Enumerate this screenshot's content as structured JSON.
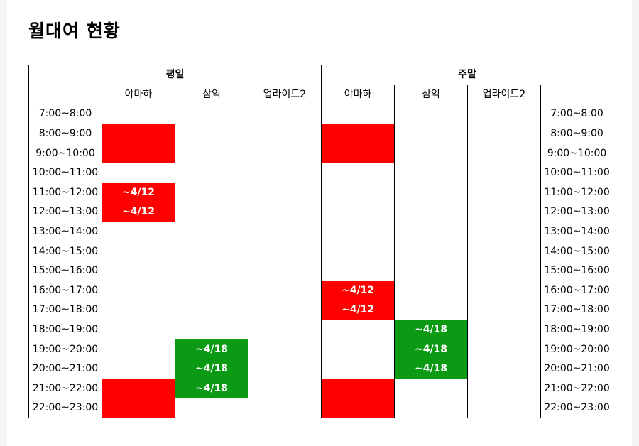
{
  "title": "월대여 현황",
  "colors": {
    "reserved_red": "#ff0000",
    "reserved_green": "#0a9a14"
  },
  "groups": {
    "weekday": "평일",
    "weekend": "주말"
  },
  "rooms": [
    "야마하",
    "삼익",
    "업라이트2"
  ],
  "rows": [
    {
      "time": "7:00~8:00",
      "weekday": [
        null,
        null,
        null
      ],
      "weekend": [
        null,
        null,
        null
      ]
    },
    {
      "time": "8:00~9:00",
      "weekday": [
        {
          "c": "red",
          "t": ""
        },
        null,
        null
      ],
      "weekend": [
        {
          "c": "red",
          "t": ""
        },
        null,
        null
      ]
    },
    {
      "time": "9:00~10:00",
      "weekday": [
        {
          "c": "red",
          "t": ""
        },
        null,
        null
      ],
      "weekend": [
        {
          "c": "red",
          "t": ""
        },
        null,
        null
      ]
    },
    {
      "time": "10:00~11:00",
      "weekday": [
        null,
        null,
        null
      ],
      "weekend": [
        null,
        null,
        null
      ]
    },
    {
      "time": "11:00~12:00",
      "weekday": [
        {
          "c": "red",
          "t": "~4/12"
        },
        null,
        null
      ],
      "weekend": [
        null,
        null,
        null
      ]
    },
    {
      "time": "12:00~13:00",
      "weekday": [
        {
          "c": "red",
          "t": "~4/12"
        },
        null,
        null
      ],
      "weekend": [
        null,
        null,
        null
      ]
    },
    {
      "time": "13:00~14:00",
      "weekday": [
        null,
        null,
        null
      ],
      "weekend": [
        null,
        null,
        null
      ]
    },
    {
      "time": "14:00~15:00",
      "weekday": [
        null,
        null,
        null
      ],
      "weekend": [
        null,
        null,
        null
      ]
    },
    {
      "time": "15:00~16:00",
      "weekday": [
        null,
        null,
        null
      ],
      "weekend": [
        null,
        null,
        null
      ]
    },
    {
      "time": "16:00~17:00",
      "weekday": [
        null,
        null,
        null
      ],
      "weekend": [
        {
          "c": "red",
          "t": "~4/12"
        },
        null,
        null
      ]
    },
    {
      "time": "17:00~18:00",
      "weekday": [
        null,
        null,
        null
      ],
      "weekend": [
        {
          "c": "red",
          "t": "~4/12"
        },
        null,
        null
      ]
    },
    {
      "time": "18:00~19:00",
      "weekday": [
        null,
        null,
        null
      ],
      "weekend": [
        null,
        {
          "c": "green",
          "t": "~4/18"
        },
        null
      ]
    },
    {
      "time": "19:00~20:00",
      "weekday": [
        null,
        {
          "c": "green",
          "t": "~4/18"
        },
        null
      ],
      "weekend": [
        null,
        {
          "c": "green",
          "t": "~4/18"
        },
        null
      ]
    },
    {
      "time": "20:00~21:00",
      "weekday": [
        null,
        {
          "c": "green",
          "t": "~4/18"
        },
        null
      ],
      "weekend": [
        null,
        {
          "c": "green",
          "t": "~4/18"
        },
        null
      ]
    },
    {
      "time": "21:00~22:00",
      "weekday": [
        {
          "c": "red",
          "t": ""
        },
        {
          "c": "green",
          "t": "~4/18"
        },
        null
      ],
      "weekend": [
        {
          "c": "red",
          "t": ""
        },
        null,
        null
      ]
    },
    {
      "time": "22:00~23:00",
      "weekday": [
        {
          "c": "red",
          "t": ""
        },
        null,
        null
      ],
      "weekend": [
        {
          "c": "red",
          "t": ""
        },
        null,
        null
      ]
    }
  ]
}
